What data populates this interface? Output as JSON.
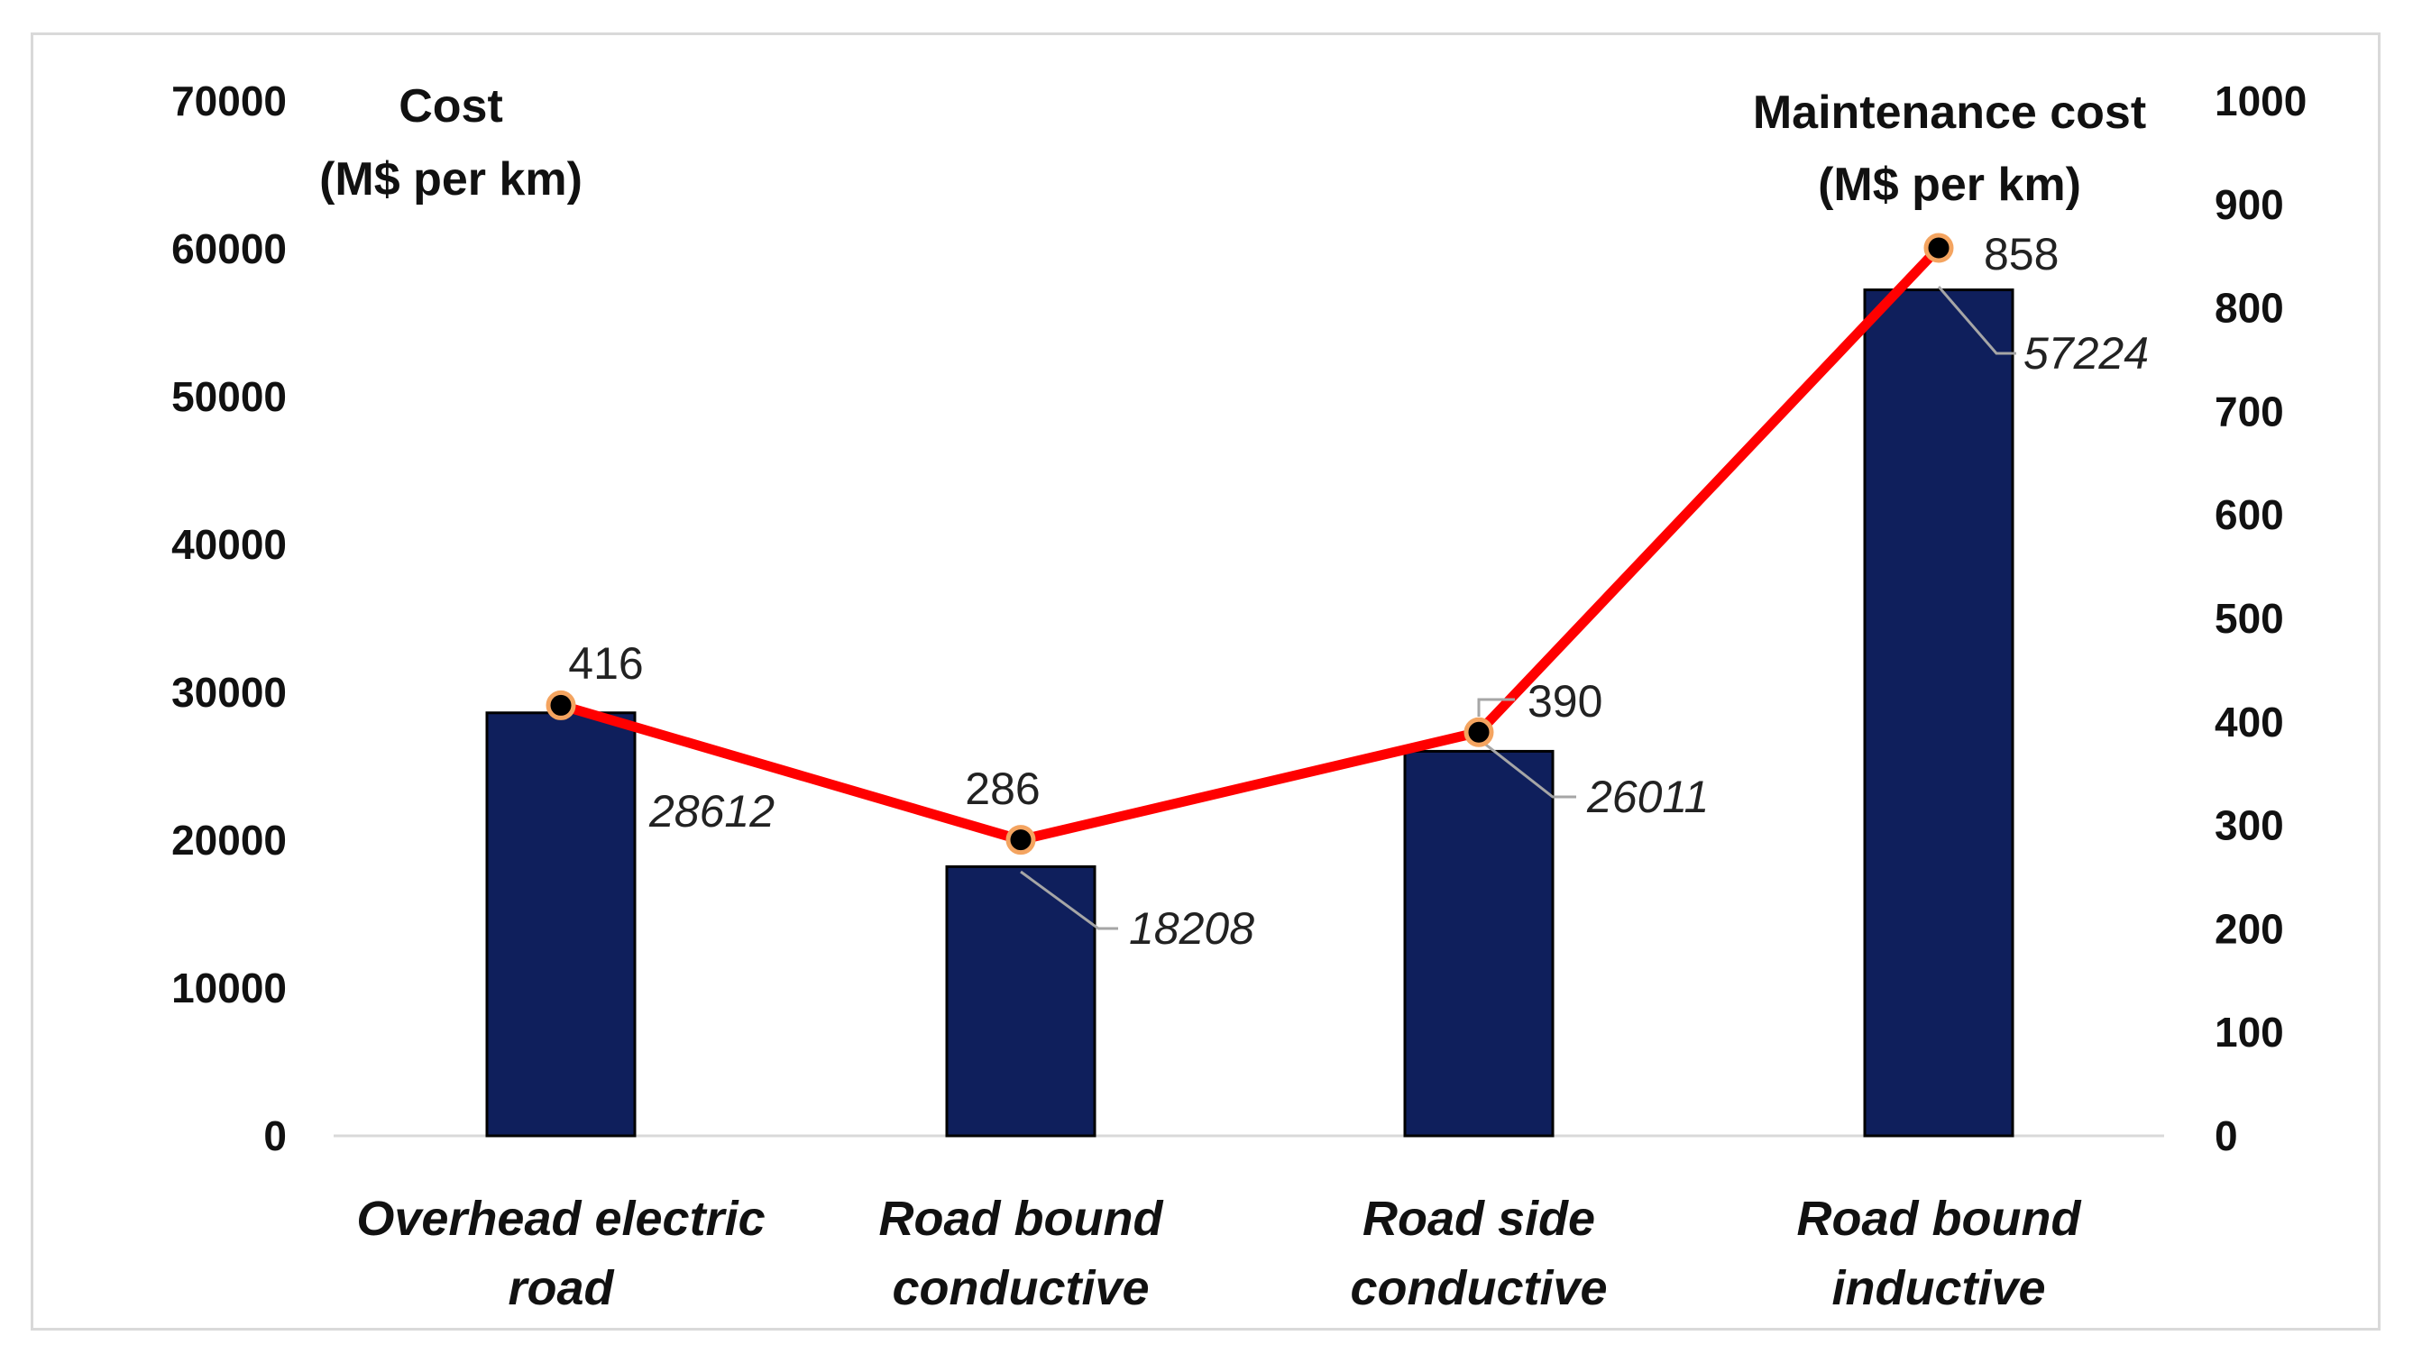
{
  "chart_data": {
    "type": "bar+line",
    "categories": [
      [
        "Overhead electric",
        "road"
      ],
      [
        "Road bound",
        "conductive"
      ],
      [
        "Road side",
        "conductive"
      ],
      [
        "Road bound",
        "inductive"
      ]
    ],
    "series": [
      {
        "name": "Cost",
        "type": "bar",
        "axis": "left",
        "values": [
          28612,
          18208,
          26011,
          57224
        ],
        "labels": [
          "28612",
          "18208",
          "26011",
          "57224"
        ],
        "color": "#0f1f5c"
      },
      {
        "name": "Maintenance cost",
        "type": "line",
        "axis": "right",
        "values": [
          416,
          286,
          390,
          858
        ],
        "labels": [
          "416",
          "286",
          "390",
          "858"
        ],
        "color": "#ff0000",
        "marker_color": "#000000",
        "marker_edge": "#f4a460"
      }
    ],
    "left_axis": {
      "title_lines": [
        "Cost",
        "(M$ per km)"
      ],
      "ylim": [
        0,
        70000
      ],
      "ticks": [
        "0",
        "10000",
        "20000",
        "30000",
        "40000",
        "50000",
        "60000",
        "70000"
      ]
    },
    "right_axis": {
      "title_lines": [
        "Maintenance cost",
        "(M$ per km)"
      ],
      "ylim": [
        0,
        1000
      ],
      "ticks": [
        "0",
        "100",
        "200",
        "300",
        "400",
        "500",
        "600",
        "700",
        "800",
        "900",
        "1000"
      ]
    },
    "grid": false,
    "legend": "none",
    "leader_line_color": "#a6a6a6",
    "axis_line_color": "#d9d9d9"
  }
}
